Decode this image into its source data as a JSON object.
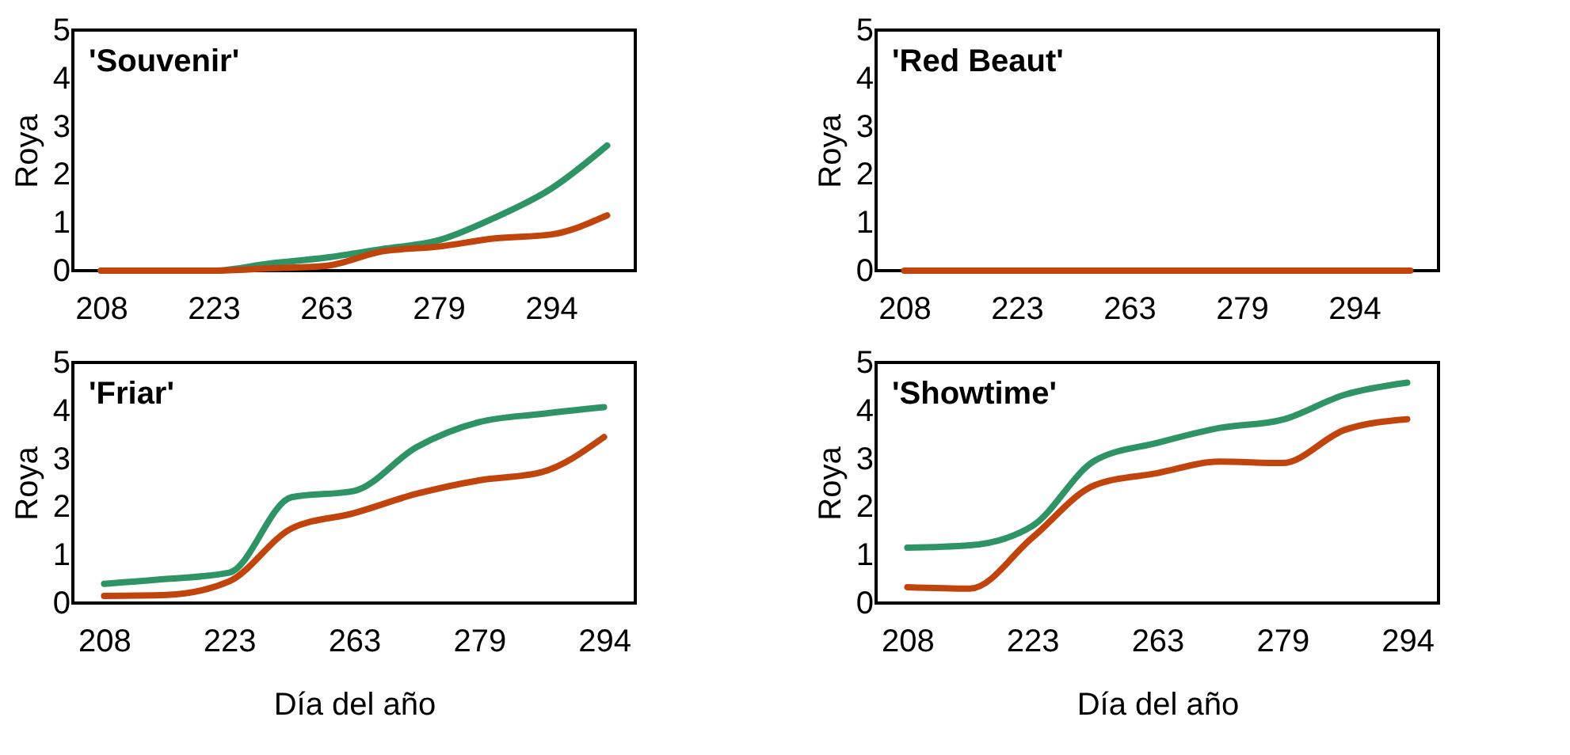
{
  "chart_data": [
    {
      "type": "line",
      "title": "'Souvenir'",
      "ylabel": "Roya",
      "categories": [
        "208",
        null,
        "223",
        null,
        "263",
        null,
        "279",
        null,
        "294",
        null
      ],
      "ylim": [
        0,
        5
      ],
      "yticks": [
        0,
        1,
        2,
        3,
        4,
        5
      ],
      "series": [
        {
          "color": "#2e9466",
          "values": [
            0,
            0,
            0,
            0.15,
            0.27,
            0.45,
            0.63,
            1.1,
            1.7,
            2.6
          ]
        },
        {
          "color": "#c0440c",
          "values": [
            0,
            0,
            0,
            0.05,
            0.1,
            0.4,
            0.5,
            0.67,
            0.75,
            1.15
          ]
        }
      ]
    },
    {
      "type": "line",
      "title": "'Red Beaut'",
      "ylabel": "Roya",
      "categories": [
        "208",
        null,
        "223",
        null,
        "263",
        null,
        "279",
        null,
        "294",
        null
      ],
      "ylim": [
        0,
        5
      ],
      "yticks": [
        0,
        1,
        2,
        3,
        4,
        5
      ],
      "series": [
        {
          "color": "#c0440c",
          "values": [
            0,
            0,
            0,
            0,
            0,
            0,
            0,
            0,
            0,
            0
          ]
        }
      ]
    },
    {
      "type": "line",
      "title": "'Friar'",
      "xlabel": "Día del año",
      "ylabel": "Roya",
      "categories": [
        "208",
        null,
        "223",
        null,
        "263",
        null,
        "279",
        null,
        "294"
      ],
      "ylim": [
        0,
        5
      ],
      "yticks": [
        0,
        1,
        2,
        3,
        4,
        5
      ],
      "series": [
        {
          "color": "#2e9466",
          "values": [
            0.4,
            0.5,
            0.63,
            2.2,
            2.33,
            3.24,
            3.76,
            3.93,
            4.07
          ]
        },
        {
          "color": "#c0440c",
          "values": [
            0.15,
            0.17,
            0.45,
            1.55,
            1.87,
            2.27,
            2.55,
            2.72,
            3.45
          ]
        }
      ]
    },
    {
      "type": "line",
      "title": "'Showtime'",
      "xlabel": "Día del año",
      "ylabel": "Roya",
      "categories": [
        "208",
        null,
        "223",
        null,
        "263",
        null,
        "279",
        null,
        "294"
      ],
      "ylim": [
        0,
        5
      ],
      "yticks": [
        0,
        1,
        2,
        3,
        4,
        5
      ],
      "series": [
        {
          "color": "#2e9466",
          "values": [
            1.15,
            1.2,
            1.6,
            2.96,
            3.33,
            3.64,
            3.81,
            4.33,
            4.58
          ]
        },
        {
          "color": "#c0440c",
          "values": [
            0.33,
            0.3,
            1.36,
            2.45,
            2.7,
            2.94,
            2.91,
            3.6,
            3.82
          ]
        }
      ]
    }
  ]
}
